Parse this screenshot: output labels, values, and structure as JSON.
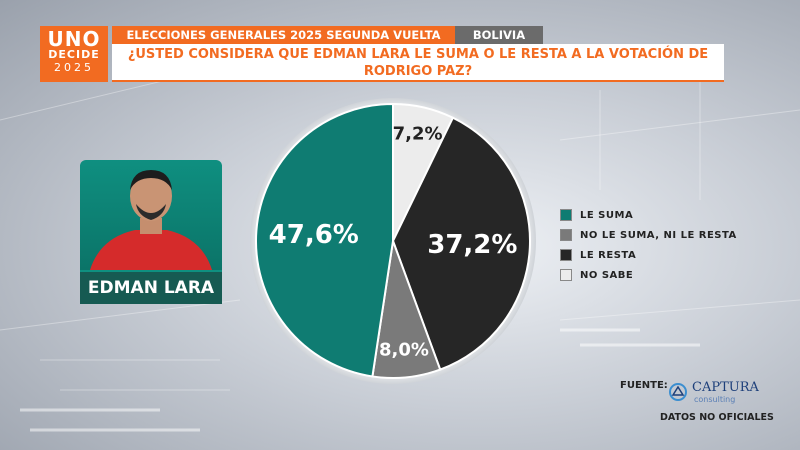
{
  "logo": {
    "line1": "UNO",
    "line2": "DECIDE",
    "line3": "2025"
  },
  "header": {
    "title": "ELECCIONES GENERALES 2025 SEGUNDA VUELTA",
    "country": "BOLIVIA",
    "question_line1": "¿USTED CONSIDERA QUE EDMAN LARA LE SUMA O LE RESTA A LA VOTACIÓN DE",
    "question_line2": "RODRIGO PAZ?"
  },
  "candidate": {
    "name": "EDMAN LARA"
  },
  "chart_data": {
    "type": "pie",
    "slices": [
      {
        "label": "NO SABE",
        "value": 7.2,
        "display": "7,2%",
        "color": "#ececec",
        "text_color": "#222222"
      },
      {
        "label": "LE RESTA",
        "value": 37.2,
        "display": "37,2%",
        "color": "#262626",
        "text_color": "#ffffff"
      },
      {
        "label": "NO LE SUMA, NI LE RESTA",
        "value": 8.0,
        "display": "8,0%",
        "color": "#7a7a7a",
        "text_color": "#ffffff"
      },
      {
        "label": "LE SUMA",
        "value": 47.6,
        "display": "47,6%",
        "color": "#0f7c72",
        "text_color": "#ffffff"
      }
    ],
    "start_angle_deg": 0,
    "direction": "clockwise",
    "legend": [
      {
        "label": "LE SUMA",
        "color": "#0f7c72"
      },
      {
        "label": "NO LE SUMA, NI LE RESTA",
        "color": "#7a7a7a"
      },
      {
        "label": "LE RESTA",
        "color": "#262626"
      },
      {
        "label": "NO SABE",
        "color": "#ececec"
      }
    ],
    "legend_position": "right"
  },
  "source": {
    "label": "FUENTE:",
    "org": "CAPTURA",
    "org_sub": "consulting",
    "note": "DATOS NO OFICIALES"
  }
}
